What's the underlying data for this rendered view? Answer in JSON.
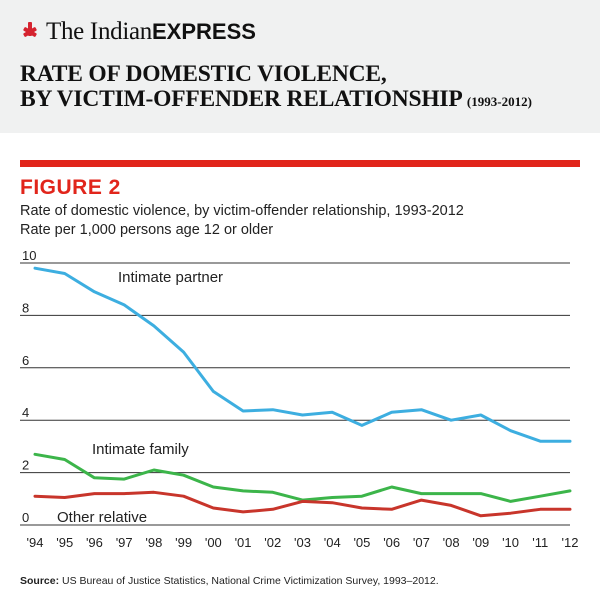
{
  "header": {
    "brand_the": "The Indian",
    "brand_express": "EXPRESS",
    "headline_line1": "RATE OF DOMESTIC VIOLENCE,",
    "headline_line2": "BY VICTIM-OFFENDER RELATIONSHIP",
    "headline_years": "(1993-2012)"
  },
  "figure_label": "FIGURE 2",
  "source": {
    "label": "Source:",
    "text": "US Bureau of Justice Statistics, National Crime Victimization Survey, 1993–2012."
  },
  "colors": {
    "accent": "#e1251b",
    "intimate_partner": "#3daee0",
    "intimate_family": "#3cb54a",
    "other_relative": "#c8352b",
    "grid": "#333333"
  },
  "chart_data": {
    "type": "line",
    "title": "Rate of domestic violence, by victim-offender relationship, 1993-2012",
    "ylabel": "Rate per 1,000 persons age 12 or older",
    "xlabel": "",
    "x": [
      "'94",
      "'95",
      "'96",
      "'97",
      "'98",
      "'99",
      "'00",
      "'01",
      "'02",
      "'03",
      "'04",
      "'05",
      "'06",
      "'07",
      "'08",
      "'09",
      "'10",
      "'11",
      "'12"
    ],
    "x_ticks": [
      "'94",
      "'95",
      "'96",
      "'97",
      "'98",
      "'99",
      "'00",
      "'01",
      "'02",
      "'03",
      "'04",
      "'05",
      "'06",
      "'07",
      "'08",
      "'09",
      "'10",
      "'11",
      "'12"
    ],
    "y_ticks": [
      0,
      2,
      4,
      6,
      8,
      10
    ],
    "ylim": [
      0,
      10
    ],
    "grid": true,
    "legend": "inline labels",
    "series": [
      {
        "name": "Intimate partner",
        "color": "#3daee0",
        "values": [
          9.8,
          9.6,
          8.9,
          8.4,
          7.6,
          6.6,
          5.1,
          4.35,
          4.4,
          4.2,
          4.3,
          3.8,
          4.3,
          4.4,
          4.0,
          4.2,
          3.6,
          3.2,
          3.2
        ]
      },
      {
        "name": "Intimate family",
        "color": "#3cb54a",
        "values": [
          2.7,
          2.5,
          1.8,
          1.75,
          2.1,
          1.9,
          1.45,
          1.3,
          1.25,
          0.95,
          1.05,
          1.1,
          1.45,
          1.2,
          1.2,
          1.2,
          0.9,
          1.1,
          1.3
        ]
      },
      {
        "name": "Other relative",
        "color": "#c8352b",
        "values": [
          1.1,
          1.05,
          1.2,
          1.2,
          1.25,
          1.1,
          0.65,
          0.5,
          0.6,
          0.9,
          0.85,
          0.65,
          0.6,
          0.95,
          0.75,
          0.35,
          0.45,
          0.6,
          0.6
        ]
      }
    ]
  }
}
